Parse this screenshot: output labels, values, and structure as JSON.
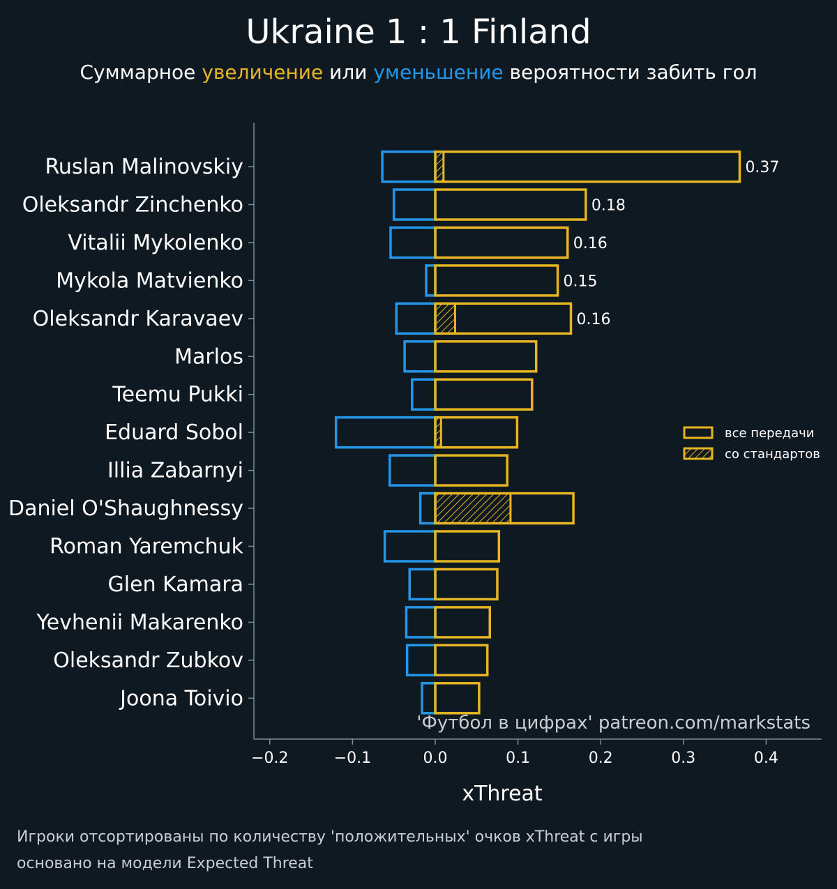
{
  "title": "Ukraine 1 : 1 Finland",
  "subtitle": {
    "prefix": "Суммарное",
    "increase": "увеличение",
    "middle": "или",
    "decrease": "уменьшение",
    "suffix": "вероятности забить гол"
  },
  "colors": {
    "background": "#0f1921",
    "positive": "#e7b523",
    "negative": "#2495e8",
    "axis": "#7f8c91",
    "text": "#ffffff"
  },
  "watermark": "'Футбол в цифрах' patreon.com/markstats",
  "footnotes": [
    "Игроки отсортированы по количеству 'положительных' очков xThreat с игры",
    "основано на модели Expected Threat"
  ],
  "chart_data": {
    "type": "bar",
    "orientation": "horizontal",
    "xlabel": "xThreat",
    "xlim": [
      -0.2,
      0.47
    ],
    "xticks": [
      -0.2,
      -0.1,
      0.0,
      0.1,
      0.2,
      0.3,
      0.4
    ],
    "xtick_labels": [
      "−0.2",
      "−0.1",
      "0.0",
      "0.1",
      "0.2",
      "0.3",
      "0.4"
    ],
    "categories": [
      "Ruslan Malinovskiy",
      "Oleksandr Zinchenko",
      "Vitalii Mykolenko",
      "Mykola Matvienko",
      "Oleksandr Karavaev",
      "Marlos",
      "Teemu Pukki",
      "Eduard Sobol",
      "Illia Zabarnyi",
      "Daniel O'Shaughnessy",
      "Roman Yaremchuk",
      "Glen Kamara",
      "Yevhenii Makarenko",
      "Oleksandr Zubkov",
      "Joona Toivio"
    ],
    "series": [
      {
        "name": "positive",
        "legend": "все передачи",
        "values": [
          0.368,
          0.182,
          0.16,
          0.148,
          0.164,
          0.122,
          0.117,
          0.099,
          0.087,
          0.167,
          0.077,
          0.075,
          0.066,
          0.063,
          0.053
        ]
      },
      {
        "name": "negative",
        "values": [
          -0.064,
          -0.05,
          -0.054,
          -0.011,
          -0.047,
          -0.037,
          -0.028,
          -0.12,
          -0.055,
          -0.018,
          -0.061,
          -0.031,
          -0.035,
          -0.034,
          -0.016
        ]
      },
      {
        "name": "set_pieces",
        "legend": "со стандартов",
        "values": [
          0.01,
          0,
          0,
          0,
          0.024,
          0,
          0,
          0.007,
          0,
          0.091,
          0,
          0,
          0,
          0,
          0
        ]
      }
    ],
    "value_labels": [
      "0.37",
      "0.18",
      "0.16",
      "0.15",
      "0.16"
    ],
    "legend_position": "center-right"
  }
}
